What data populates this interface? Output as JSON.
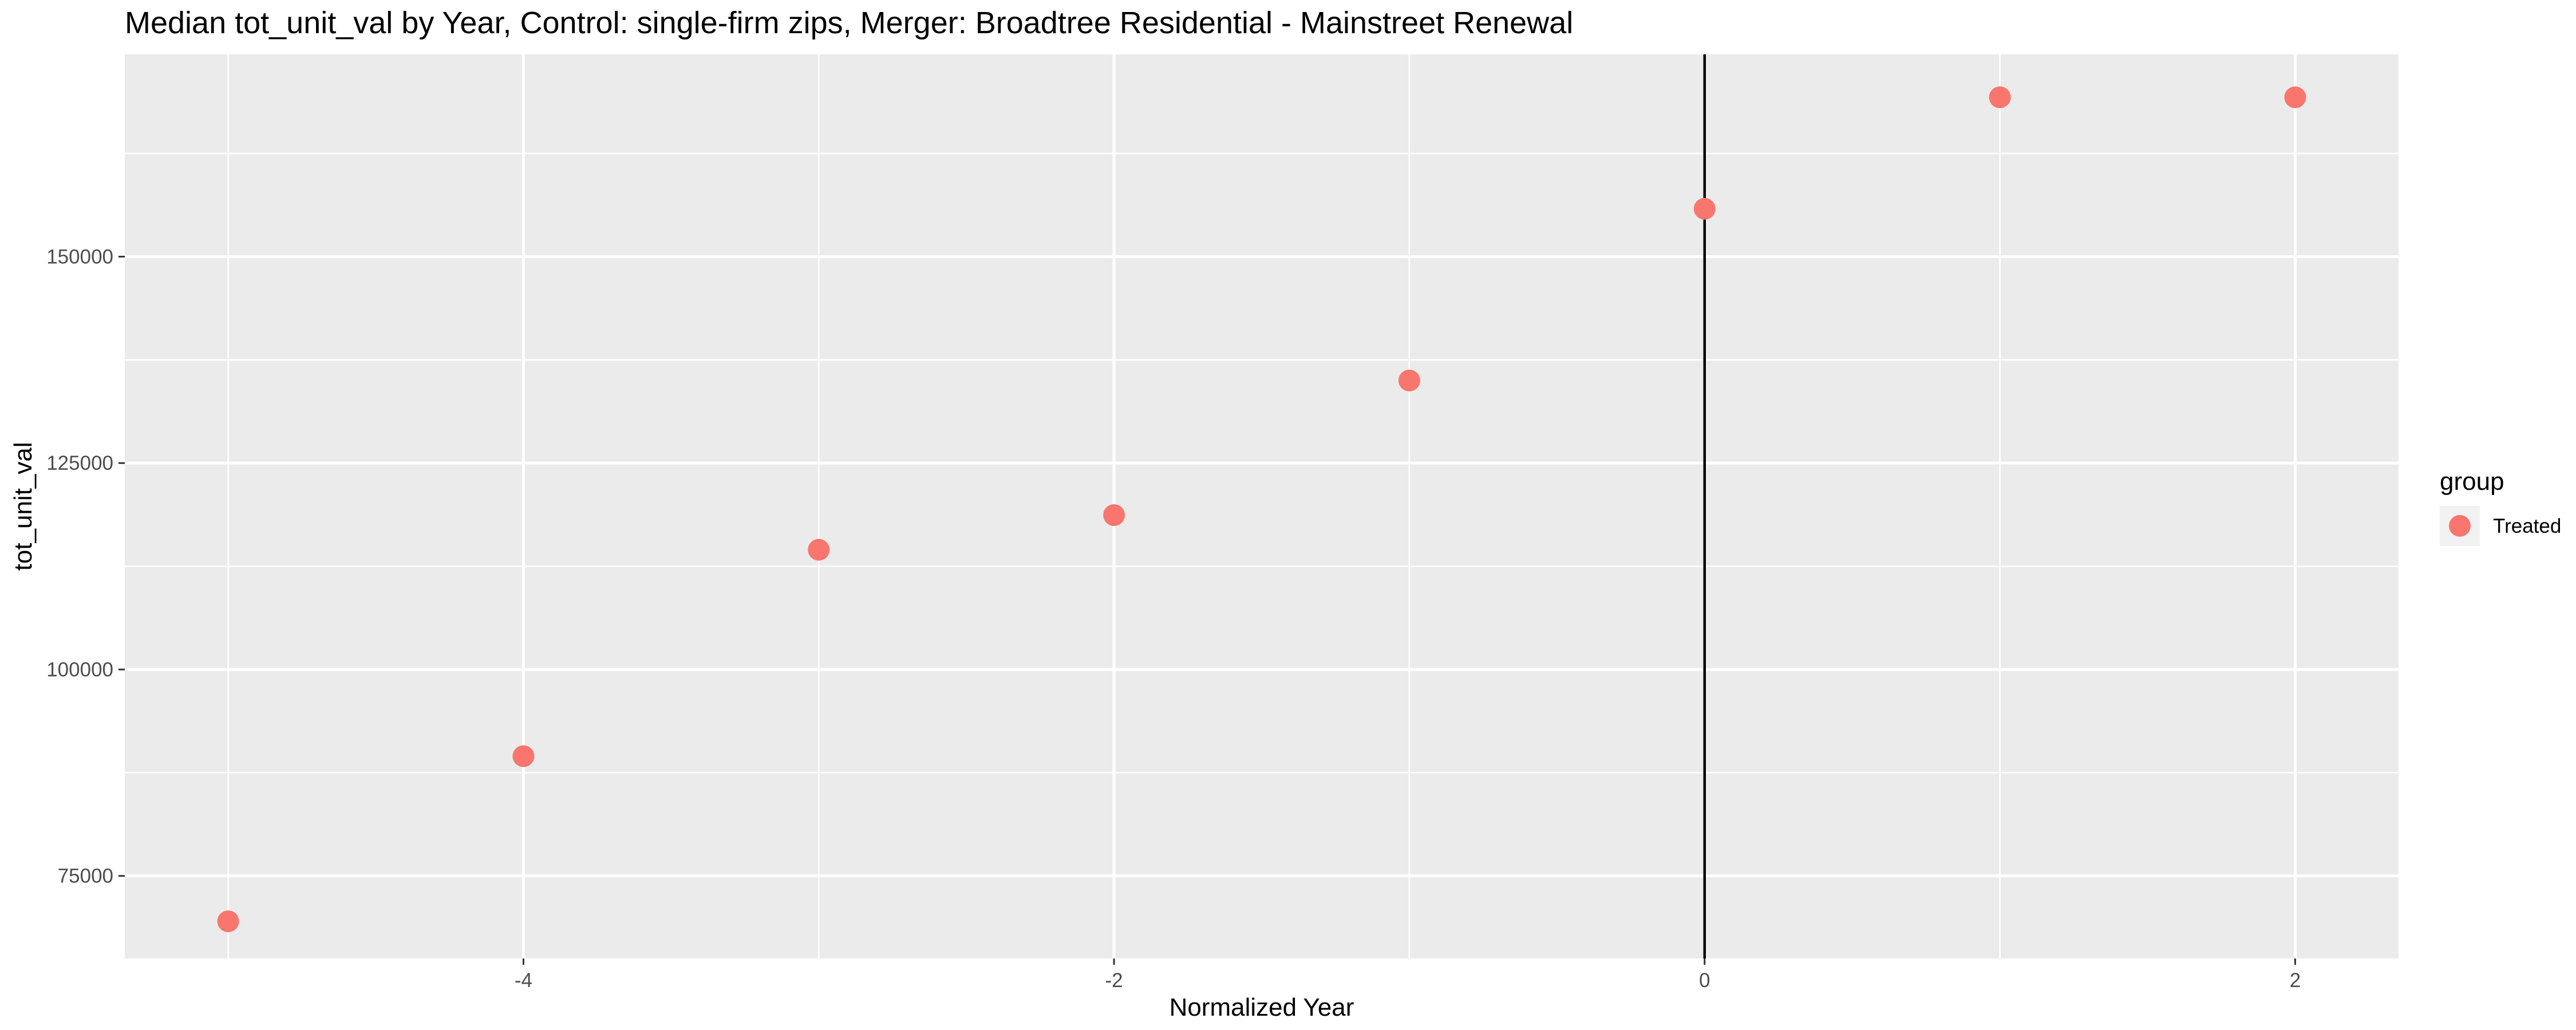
{
  "chart_data": {
    "type": "scatter",
    "title": "Median tot_unit_val by Year, Control: single-firm zips, Merger: Broadtree Residential - Mainstreet Renewal",
    "xlabel": "Normalized Year",
    "ylabel": "tot_unit_val",
    "xlim": [
      -5.35,
      2.35
    ],
    "ylim": [
      65000,
      174500
    ],
    "x_ticks": [
      -4,
      -2,
      0,
      2
    ],
    "x_tick_labels": [
      "-4",
      "-2",
      "0",
      "2"
    ],
    "y_ticks": [
      75000,
      100000,
      125000,
      150000
    ],
    "y_tick_labels": [
      "75000",
      "100000",
      "125000",
      "150000"
    ],
    "grid": true,
    "vline_x": 0,
    "legend": {
      "title": "group",
      "position": "right",
      "entries": [
        "Treated"
      ]
    },
    "series": [
      {
        "name": "Treated",
        "color": "#f8766d",
        "x": [
          -5,
          -4,
          -3,
          -2,
          -1,
          0,
          1,
          2
        ],
        "y": [
          69500,
          89500,
          114500,
          118700,
          135000,
          155800,
          169300,
          169300
        ]
      }
    ]
  },
  "colors": {
    "panel_background": "#ebebeb",
    "grid_major": "#ffffff",
    "vline": "#000000",
    "point": "#f8766d"
  }
}
